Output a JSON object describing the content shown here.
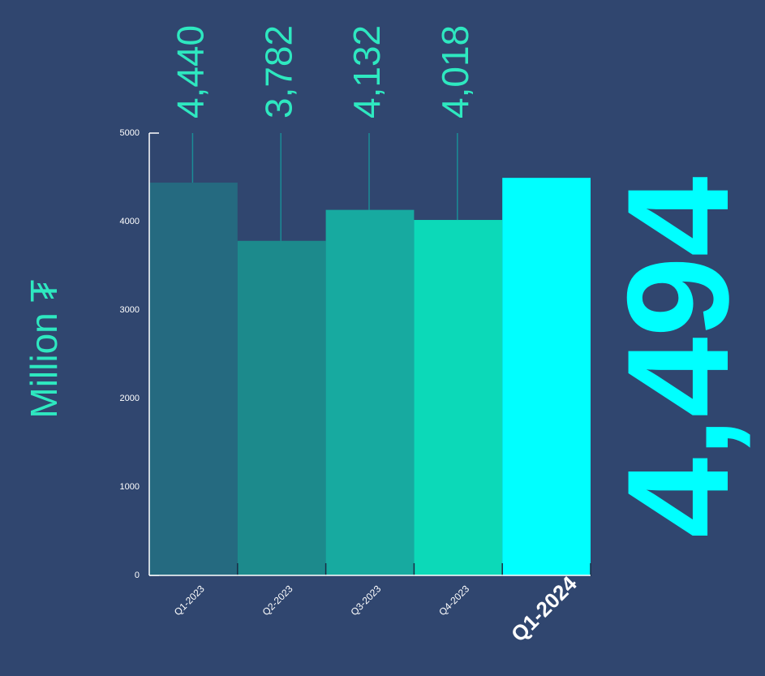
{
  "chart_data": {
    "type": "bar",
    "ylabel": "Million ₮",
    "categories": [
      "Q1-2023",
      "Q2-2023",
      "Q3-2023",
      "Q4-2023",
      "Q1-2024"
    ],
    "values": [
      4440,
      3782,
      4132,
      4018,
      4494
    ],
    "value_labels": [
      "4,440",
      "3,782",
      "4,132",
      "4,018",
      "4,494"
    ],
    "colors": [
      "#256a80",
      "#1c8a8c",
      "#17aaa0",
      "#0cd9b8",
      "#00ffff"
    ],
    "ylim": [
      0,
      5000
    ],
    "yticks": [
      0,
      1000,
      2000,
      3000,
      4000,
      5000
    ]
  }
}
